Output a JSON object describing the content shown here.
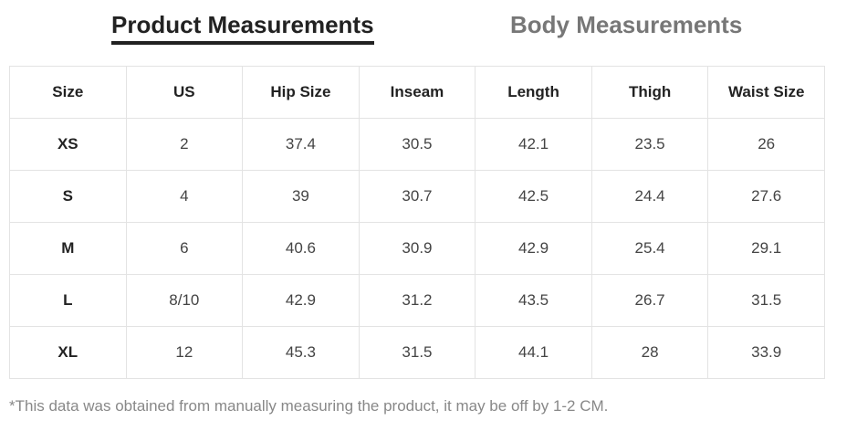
{
  "tabs": {
    "product_label": "Product Measurements",
    "body_label": "Body Measurements",
    "active": "product"
  },
  "table": {
    "headers": [
      "Size",
      "US",
      "Hip Size",
      "Inseam",
      "Length",
      "Thigh",
      "Waist Size"
    ],
    "rows": [
      [
        "XS",
        "2",
        "37.4",
        "30.5",
        "42.1",
        "23.5",
        "26"
      ],
      [
        "S",
        "4",
        "39",
        "30.7",
        "42.5",
        "24.4",
        "27.6"
      ],
      [
        "M",
        "6",
        "40.6",
        "30.9",
        "42.9",
        "25.4",
        "29.1"
      ],
      [
        "L",
        "8/10",
        "42.9",
        "31.2",
        "43.5",
        "26.7",
        "31.5"
      ],
      [
        "XL",
        "12",
        "45.3",
        "31.5",
        "44.1",
        "28",
        "33.9"
      ]
    ]
  },
  "note": "*This data was obtained from manually measuring the product, it may be off by 1-2 CM.",
  "colors": {
    "active_tab": "#222222",
    "inactive_tab": "#777777",
    "border": "#e3e3e3",
    "note": "#888888"
  }
}
